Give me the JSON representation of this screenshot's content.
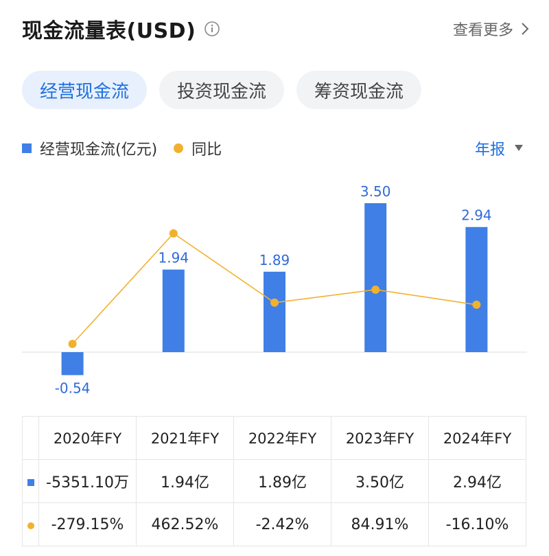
{
  "header": {
    "title": "现金流量表(USD)",
    "info_icon": "info-circle-icon",
    "more_label": "查看更多",
    "more_icon": "chevron-right-icon"
  },
  "tabs": [
    {
      "label": "经营现金流",
      "active": true
    },
    {
      "label": "投资现金流",
      "active": false
    },
    {
      "label": "筹资现金流",
      "active": false
    }
  ],
  "legend": {
    "bar_label": "经营现金流(亿元)",
    "line_label": "同比",
    "period_label": "年报",
    "period_icon": "caret-down-icon"
  },
  "colors": {
    "bar": "#3f7fe6",
    "line": "#f1b12d",
    "positive": "#d0363a",
    "negative": "#2a9a57",
    "accent": "#1e6fe0"
  },
  "chart_data": {
    "type": "bar",
    "categories": [
      "2020年FY",
      "2021年FY",
      "2022年FY",
      "2023年FY",
      "2024年FY"
    ],
    "series": [
      {
        "name": "经营现金流(亿元)",
        "type": "bar",
        "values": [
          -0.54,
          1.94,
          1.89,
          3.5,
          2.94
        ],
        "labels": [
          "-0.54",
          "1.94",
          "1.89",
          "3.50",
          "2.94"
        ]
      },
      {
        "name": "同比",
        "type": "line",
        "values": [
          -279.15,
          462.52,
          -2.42,
          84.91,
          -16.1
        ]
      }
    ]
  },
  "table": {
    "headers": [
      "2020年FY",
      "2021年FY",
      "2022年FY",
      "2023年FY",
      "2024年FY"
    ],
    "values": [
      "-5351.10万",
      "1.94亿",
      "1.89亿",
      "3.50亿",
      "2.94亿"
    ],
    "yoy": [
      {
        "text": "-279.15%",
        "sign": "neg"
      },
      {
        "text": "462.52%",
        "sign": "pos"
      },
      {
        "text": "-2.42%",
        "sign": "neg"
      },
      {
        "text": "84.91%",
        "sign": "pos"
      },
      {
        "text": "-16.10%",
        "sign": "neg"
      }
    ]
  }
}
